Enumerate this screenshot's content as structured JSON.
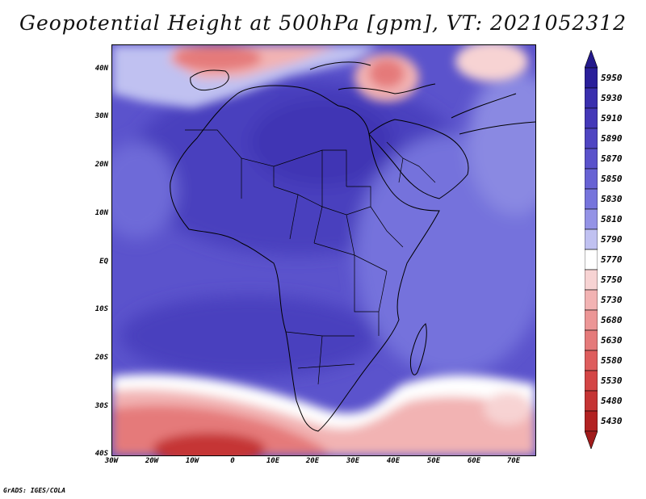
{
  "title": "Geopotential Height at 500hPa [gpm], VT: 2021052312",
  "credit": "GrADS: IGES/COLA",
  "map": {
    "lon_range": [
      -30,
      75
    ],
    "lat_range": [
      -40,
      45
    ],
    "y_ticks": [
      {
        "lat": 40,
        "label": "40N"
      },
      {
        "lat": 30,
        "label": "30N"
      },
      {
        "lat": 20,
        "label": "20N"
      },
      {
        "lat": 10,
        "label": "10N"
      },
      {
        "lat": 0,
        "label": "EQ"
      },
      {
        "lat": -10,
        "label": "10S"
      },
      {
        "lat": -20,
        "label": "20S"
      },
      {
        "lat": -30,
        "label": "30S"
      },
      {
        "lat": -40,
        "label": "40S"
      }
    ],
    "x_ticks": [
      {
        "lon": -30,
        "label": "30W"
      },
      {
        "lon": -20,
        "label": "20W"
      },
      {
        "lon": -10,
        "label": "10W"
      },
      {
        "lon": 0,
        "label": "0"
      },
      {
        "lon": 10,
        "label": "10E"
      },
      {
        "lon": 20,
        "label": "20E"
      },
      {
        "lon": 30,
        "label": "30E"
      },
      {
        "lon": 40,
        "label": "40E"
      },
      {
        "lon": 50,
        "label": "50E"
      },
      {
        "lon": 60,
        "label": "60E"
      },
      {
        "lon": 70,
        "label": "70E"
      }
    ]
  },
  "colorbar": {
    "levels": [
      {
        "value": "5950",
        "color": "#2a1f9a"
      },
      {
        "value": "5930",
        "color": "#3a2fae"
      },
      {
        "value": "5910",
        "color": "#4438b8"
      },
      {
        "value": "5890",
        "color": "#4f45c2"
      },
      {
        "value": "5870",
        "color": "#5a52cb"
      },
      {
        "value": "5850",
        "color": "#6762d4"
      },
      {
        "value": "5830",
        "color": "#7674dc"
      },
      {
        "value": "5810",
        "color": "#9493e6"
      },
      {
        "value": "5790",
        "color": "#c0c1f1"
      },
      {
        "value": "5770",
        "color": "#ffffff"
      },
      {
        "value": "5750",
        "color": "#f7d3d3"
      },
      {
        "value": "5730",
        "color": "#f2b3b3"
      },
      {
        "value": "5680",
        "color": "#ec9696"
      },
      {
        "value": "5630",
        "color": "#e57a7a"
      },
      {
        "value": "5580",
        "color": "#de5d5d"
      },
      {
        "value": "5530",
        "color": "#d44545"
      },
      {
        "value": "5480",
        "color": "#c53434"
      },
      {
        "value": "5430",
        "color": "#b22222"
      }
    ],
    "top_arrow_color": "#241a8c",
    "bottom_arrow_color": "#a11b1b"
  }
}
